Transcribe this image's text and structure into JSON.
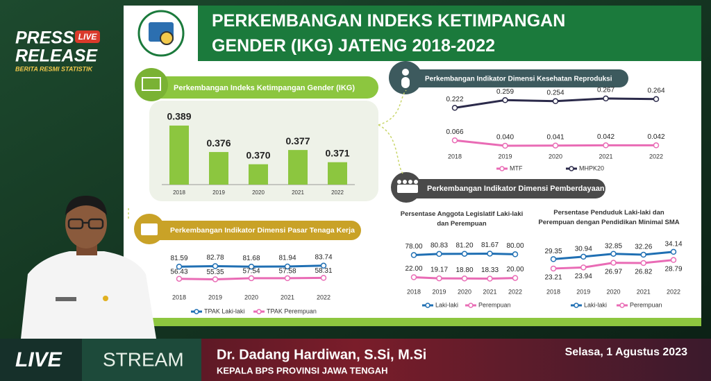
{
  "branding": {
    "press": "PRESS",
    "release": "RELEASE",
    "badge": "LIVE",
    "tagline": "BERITA RESMI STATISTIK"
  },
  "slide_title": "PERKEMBANGAN INDEKS KETIMPANGAN GENDER (IKG) JATENG 2018-2022",
  "pemberdayaan_header": "Perkembangan Indikator Dimensi Pemberdayaan",
  "chart_data": [
    {
      "type": "bar",
      "title": "Perkembangan Indeks Ketimpangan Gender (IKG)",
      "categories": [
        "2018",
        "2019",
        "2020",
        "2021",
        "2022"
      ],
      "values": [
        0.389,
        0.376,
        0.37,
        0.377,
        0.371
      ],
      "value_labels": [
        "0.389",
        "0.376",
        "0.370",
        "0.377",
        "0.371"
      ],
      "color": "#8cc63f",
      "ylim": [
        0.36,
        0.39
      ]
    },
    {
      "type": "line",
      "title": "Perkembangan Indikator Dimensi Kesehatan Reproduksi",
      "categories": [
        "2018",
        "2019",
        "2020",
        "2021",
        "2022"
      ],
      "ylim": [
        0,
        0.3
      ],
      "series": [
        {
          "name": "MTF",
          "color": "#e96bb5",
          "values": [
            0.066,
            0.04,
            0.041,
            0.042,
            0.042
          ],
          "value_labels": [
            "0.066",
            "0.040",
            "0.041",
            "0.042",
            "0.042"
          ]
        },
        {
          "name": "MHPK20",
          "color": "#2b2a4a",
          "values": [
            0.222,
            0.259,
            0.254,
            0.267,
            0.264
          ],
          "value_labels": [
            "0.222",
            "0.259",
            "0.254",
            "0.267",
            "0.264"
          ]
        }
      ]
    },
    {
      "type": "line",
      "title": "Perkembangan Indikator Dimensi Pasar Tenaga Kerja",
      "categories": [
        "2018",
        "2019",
        "2020",
        "2021",
        "2022"
      ],
      "ylim": [
        30,
        95
      ],
      "series": [
        {
          "name": "TPAK Laki-laki",
          "color": "#1f6fb3",
          "values": [
            81.59,
            82.78,
            81.68,
            81.94,
            83.74
          ],
          "value_labels": [
            "81.59",
            "82.78",
            "81.68",
            "81.94",
            "83.74"
          ]
        },
        {
          "name": "TPAK Perempuan",
          "color": "#e96bb5",
          "values": [
            56.43,
            55.35,
            57.54,
            57.58,
            58.31
          ],
          "value_labels": [
            "56.43",
            "55.35",
            "57.54",
            "57.58",
            "58.31"
          ]
        }
      ]
    },
    {
      "type": "line",
      "title": "Persentase Anggota Legislatif Laki-laki dan Perempuan",
      "categories": [
        "2018",
        "2019",
        "2020",
        "2021",
        "2022"
      ],
      "ylim": [
        0,
        100
      ],
      "series": [
        {
          "name": "Laki-laki",
          "color": "#1f6fb3",
          "values": [
            78.0,
            80.83,
            81.2,
            81.67,
            80.0
          ],
          "value_labels": [
            "78.00",
            "80.83",
            "81.20",
            "81.67",
            "80.00"
          ]
        },
        {
          "name": "Perempuan",
          "color": "#e96bb5",
          "values": [
            22.0,
            19.17,
            18.8,
            18.33,
            20.0
          ],
          "value_labels": [
            "22.00",
            "19.17",
            "18.80",
            "18.33",
            "20.00"
          ]
        }
      ]
    },
    {
      "type": "line",
      "title": "Persentase Penduduk Laki-laki dan Perempuan dengan Pendidikan Minimal SMA",
      "categories": [
        "2018",
        "2019",
        "2020",
        "2021",
        "2022"
      ],
      "ylim": [
        15,
        40
      ],
      "series": [
        {
          "name": "Laki-laki",
          "color": "#1f6fb3",
          "values": [
            29.35,
            30.94,
            32.85,
            32.26,
            34.14
          ],
          "value_labels": [
            "29.35",
            "30.94",
            "32.85",
            "32.26",
            "34.14"
          ]
        },
        {
          "name": "Perempuan",
          "color": "#e96bb5",
          "values": [
            23.21,
            23.94,
            26.97,
            26.82,
            28.79
          ],
          "value_labels": [
            "23.21",
            "23.94",
            "26.97",
            "26.82",
            "28.79"
          ]
        }
      ]
    }
  ],
  "footer": {
    "live": "LIVE",
    "stream": "STREAM",
    "speaker": "Dr. Dadang Hardiwan, S.Si, M.Si",
    "position": "KEPALA BPS PROVINSI JAWA TENGAH",
    "date": "Selasa, 1 Agustus 2023"
  }
}
